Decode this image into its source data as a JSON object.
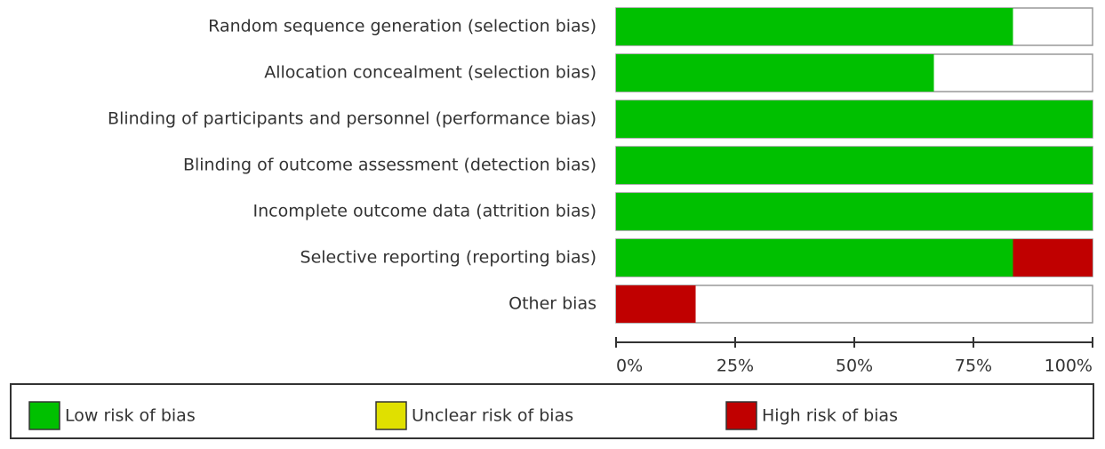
{
  "chart_data": {
    "type": "stacked-bar-horizontal",
    "categories": [
      "Random sequence generation (selection bias)",
      "Allocation concealment (selection bias)",
      "Blinding of participants and personnel (performance bias)",
      "Blinding of outcome assessment (detection bias)",
      "Incomplete outcome data (attrition bias)",
      "Selective reporting (reporting bias)",
      "Other bias"
    ],
    "series": [
      {
        "name": "Low risk of bias",
        "color": "#00c000",
        "values": [
          83.3,
          66.7,
          100,
          100,
          100,
          83.3,
          0
        ]
      },
      {
        "name": "Unclear risk of bias",
        "color": "#e0e000",
        "values": [
          0,
          0,
          0,
          0,
          0,
          0,
          0
        ]
      },
      {
        "name": "High risk of bias",
        "color": "#c00000",
        "values": [
          0,
          0,
          0,
          0,
          0,
          16.7,
          16.7
        ]
      }
    ],
    "xlim": [
      0,
      100
    ],
    "xticks": [
      {
        "value": 0,
        "label": "0%"
      },
      {
        "value": 25,
        "label": "25%"
      },
      {
        "value": 50,
        "label": "50%"
      },
      {
        "value": 75,
        "label": "75%"
      },
      {
        "value": 100,
        "label": "100%"
      }
    ]
  }
}
